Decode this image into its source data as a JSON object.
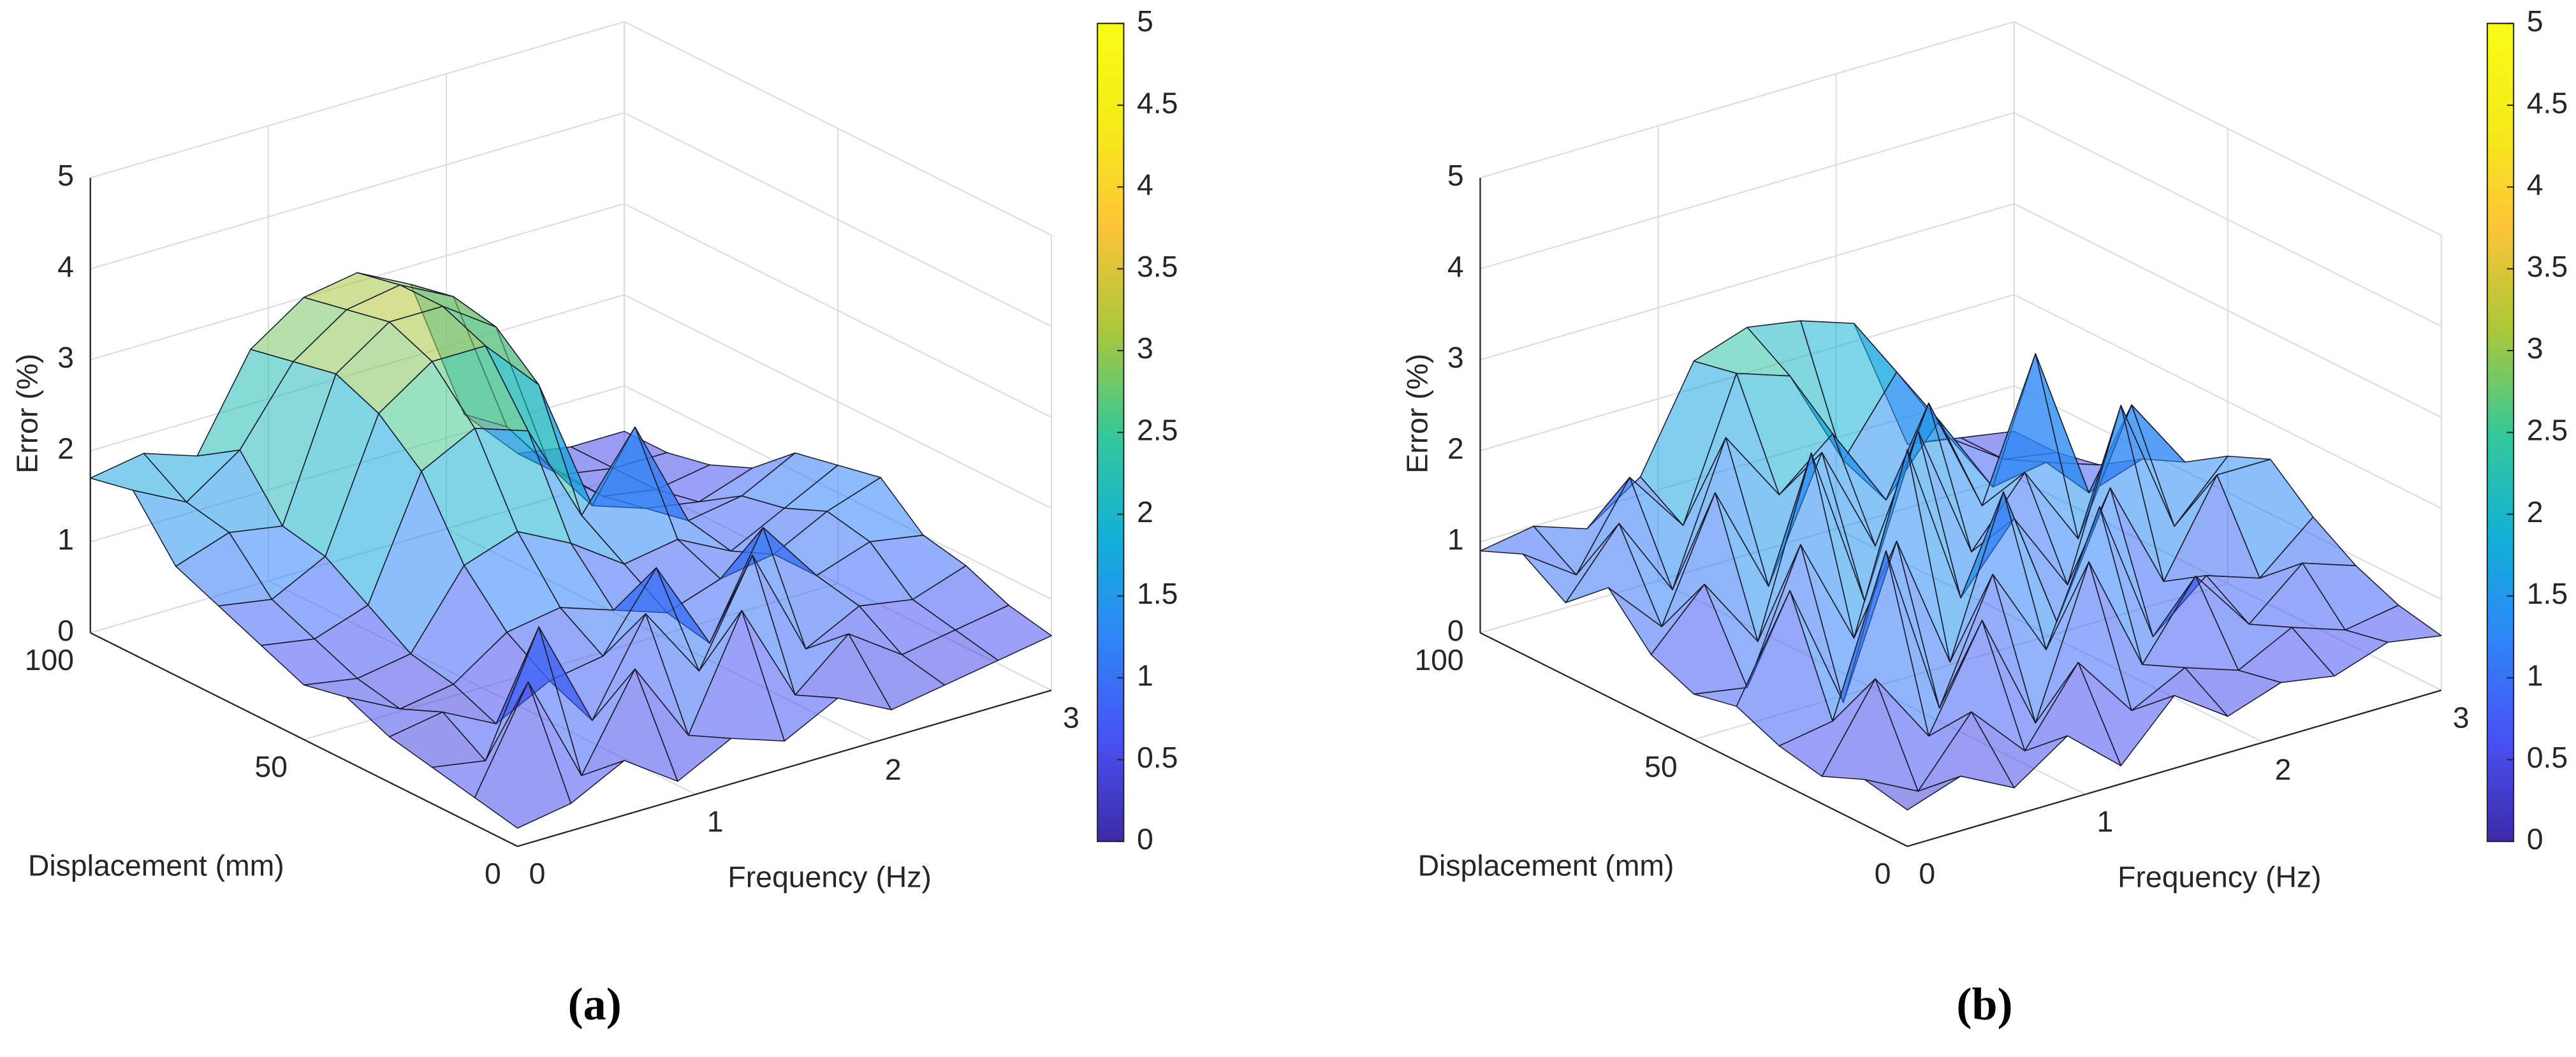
{
  "chart_data": [
    {
      "type": "surface",
      "panel_label": "(a)",
      "xlabel": "Frequency (Hz)",
      "ylabel": "Displacement (mm)",
      "zlabel": "Error (%)",
      "x": [
        0,
        0.3,
        0.6,
        0.9,
        1.2,
        1.5,
        1.8,
        2.1,
        2.4,
        2.7,
        3
      ],
      "y": [
        0,
        10,
        20,
        30,
        40,
        50,
        60,
        70,
        80,
        90,
        100
      ],
      "z": [
        [
          0.2,
          0.3,
          0.6,
          0.2,
          0.5,
          0.3,
          0.6,
          0.3,
          0.4,
          0.5,
          0.6
        ],
        [
          0.3,
          1.4,
          0.2,
          1.2,
          0.3,
          1.5,
          0.4,
          0.9,
          0.5,
          0.6,
          0.7
        ],
        [
          0.4,
          0.3,
          1.6,
          0.4,
          1.4,
          0.6,
          1.7,
          0.5,
          0.8,
          0.7,
          0.9
        ],
        [
          0.5,
          0.6,
          0.3,
          0.6,
          0.7,
          1.5,
          0.5,
          1.6,
          0.9,
          1.1,
          1.0
        ],
        [
          0.7,
          0.4,
          0.5,
          0.9,
          1.0,
          0.8,
          0.6,
          0.8,
          0.9,
          1.2,
          1.4
        ],
        [
          0.6,
          0.5,
          0.6,
          1.4,
          1.6,
          1.3,
          0.9,
          1.0,
          0.7,
          1.0,
          1.3
        ],
        [
          0.8,
          0.7,
          0.9,
          2.2,
          2.5,
          2.3,
          1.2,
          2.0,
          0.8,
          0.9,
          1.2
        ],
        [
          1.0,
          0.9,
          1.2,
          2.6,
          3.0,
          3.0,
          2.4,
          0.9,
          0.7,
          0.6,
          0.8
        ],
        [
          1.2,
          1.4,
          1.3,
          2.8,
          3.2,
          3.2,
          2.8,
          1.1,
          0.6,
          0.5,
          0.6
        ],
        [
          1.8,
          1.5,
          1.9,
          2.7,
          3.1,
          3.2,
          2.9,
          1.3,
          0.6,
          0.5,
          0.5
        ],
        [
          1.7,
          1.8,
          1.6,
          2.6,
          3.0,
          3.1,
          2.8,
          1.2,
          0.6,
          0.5,
          0.5
        ]
      ],
      "xlim": [
        0,
        3
      ],
      "ylim": [
        0,
        100
      ],
      "zlim": [
        0,
        5
      ],
      "xticks": [
        0,
        1,
        2,
        3
      ],
      "yticks": [
        0,
        50,
        100
      ],
      "zticks": [
        0,
        1,
        2,
        3,
        4,
        5
      ],
      "clim": [
        0,
        5
      ],
      "cticks": [
        0,
        0.5,
        1,
        1.5,
        2,
        2.5,
        3,
        3.5,
        4,
        4.5,
        5
      ],
      "grid": true
    },
    {
      "type": "surface",
      "panel_label": "(b)",
      "xlabel": "Frequency (Hz)",
      "ylabel": "Displacement (mm)",
      "zlabel": "Error (%)",
      "x": [
        0,
        0.3,
        0.6,
        0.9,
        1.2,
        1.5,
        1.8,
        2.1,
        2.4,
        2.7,
        3
      ],
      "y": [
        0,
        10,
        20,
        30,
        40,
        50,
        60,
        70,
        80,
        90,
        100
      ],
      "z": [
        [
          0.4,
          0.6,
          0.3,
          0.7,
          0.2,
          0.8,
          0.4,
          0.6,
          0.5,
          0.7,
          0.6
        ],
        [
          0.5,
          0.2,
          0.9,
          0.3,
          1.1,
          0.4,
          0.7,
          0.5,
          0.8,
          0.6,
          0.7
        ],
        [
          0.3,
          1.2,
          0.4,
          1.5,
          0.2,
          1.8,
          0.5,
          1.3,
          0.6,
          1.1,
          0.9
        ],
        [
          0.4,
          0.5,
          2.2,
          0.3,
          1.6,
          0.6,
          2.0,
          0.4,
          0.9,
          0.7,
          1.2
        ],
        [
          0.6,
          1.7,
          0.3,
          1.9,
          0.4,
          2.1,
          0.5,
          1.8,
          0.6,
          1.6,
          1.6
        ],
        [
          0.5,
          0.4,
          1.8,
          0.6,
          2.5,
          0.7,
          1.4,
          0.5,
          2.3,
          0.8,
          1.4
        ],
        [
          0.7,
          1.3,
          0.5,
          2.4,
          0.6,
          2.3,
          0.8,
          1.5,
          0.6,
          1.9,
          1.1
        ],
        [
          1.2,
          0.6,
          1.9,
          0.7,
          2.0,
          0.8,
          2.2,
          0.9,
          2.4,
          0.7,
          0.9
        ],
        [
          0.8,
          1.5,
          0.6,
          2.1,
          1.3,
          1.8,
          0.9,
          1.6,
          0.7,
          0.8,
          0.6
        ],
        [
          1.1,
          0.7,
          1.6,
          0.9,
          2.4,
          2.2,
          1.1,
          1.9,
          1.0,
          0.6,
          0.5
        ],
        [
          0.9,
          1.0,
          0.8,
          1.2,
          2.3,
          2.5,
          2.4,
          2.2,
          0.7,
          0.6,
          0.5
        ]
      ],
      "xlim": [
        0,
        3
      ],
      "ylim": [
        0,
        100
      ],
      "zlim": [
        0,
        5
      ],
      "xticks": [
        0,
        1,
        2,
        3
      ],
      "yticks": [
        0,
        50,
        100
      ],
      "zticks": [
        0,
        1,
        2,
        3,
        4,
        5
      ],
      "clim": [
        0,
        5
      ],
      "cticks": [
        0,
        0.5,
        1,
        1.5,
        2,
        2.5,
        3,
        3.5,
        4,
        4.5,
        5
      ],
      "grid": true
    }
  ]
}
